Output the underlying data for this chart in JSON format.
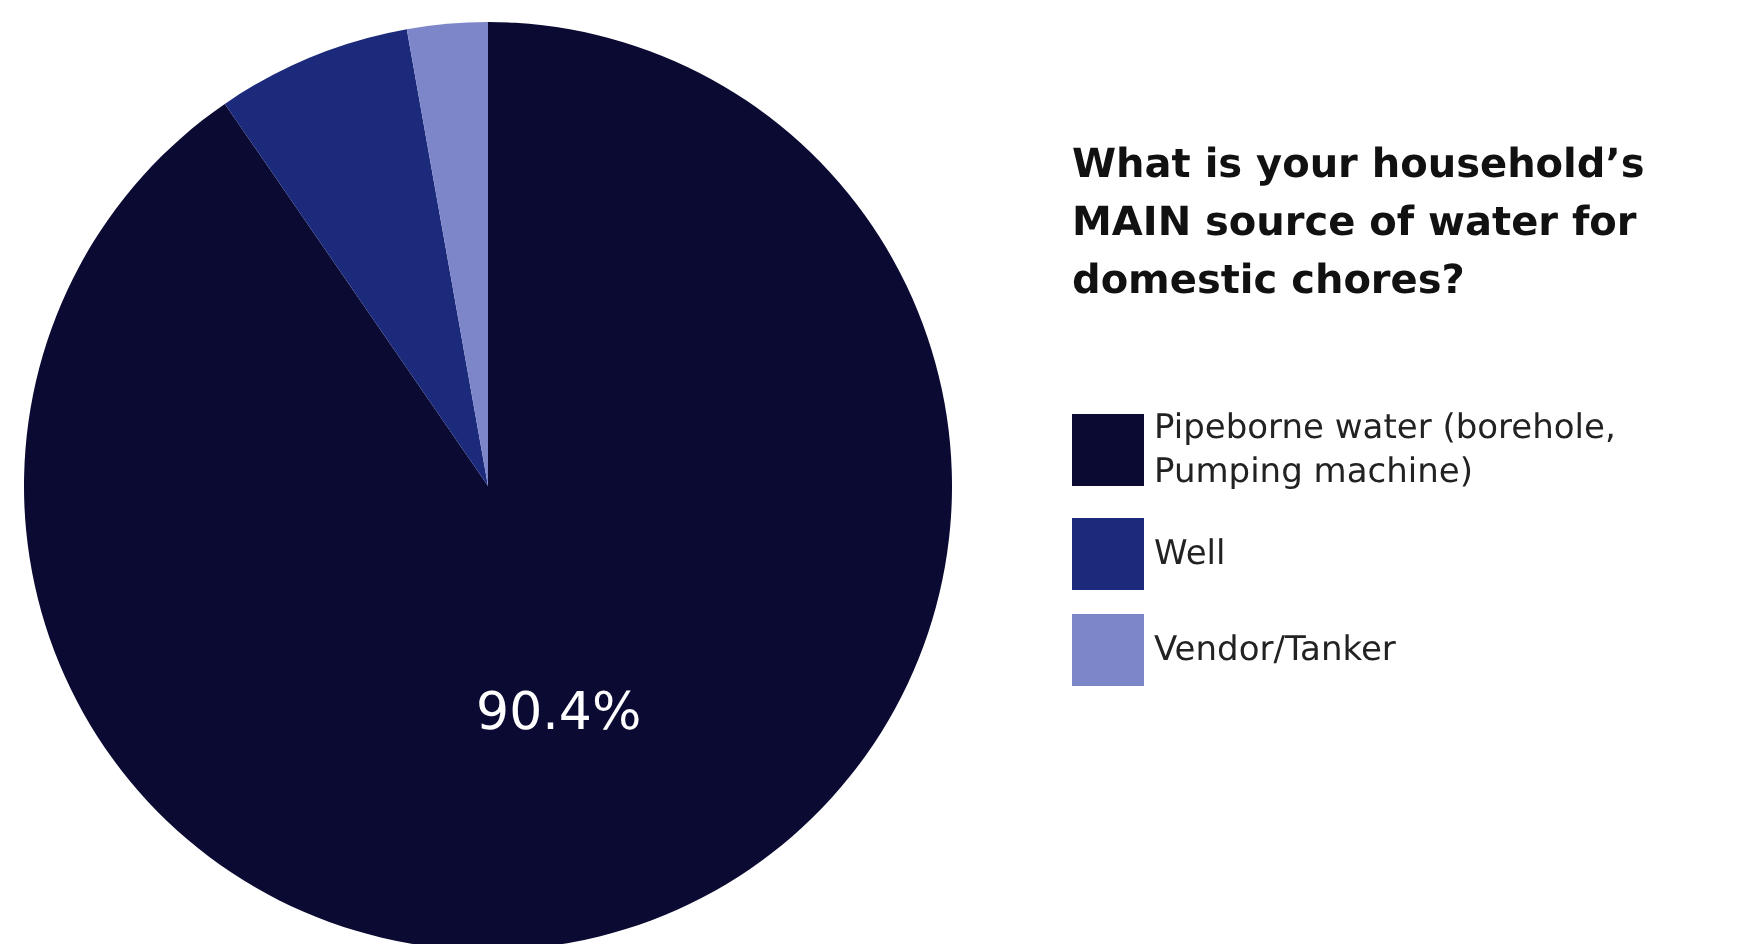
{
  "chart_data": {
    "type": "pie",
    "title": "What is your household’s MAIN source of water for domestic chores?",
    "categories": [
      "Pipeborne water (borehole, Pumping machine)",
      "Well",
      "Vendor/Tanker"
    ],
    "values": [
      90.4,
      6.8,
      2.8
    ],
    "colors": [
      "#0b0a33",
      "#1c2a7c",
      "#7c86c8"
    ],
    "value_labels": [
      "90.4%",
      null,
      null
    ],
    "legend": "right"
  }
}
